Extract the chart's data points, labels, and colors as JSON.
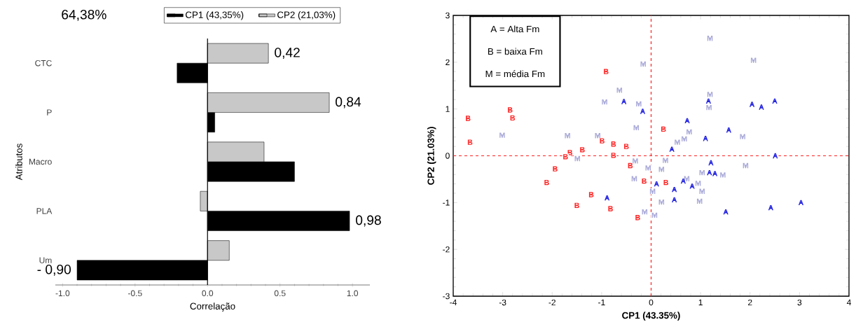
{
  "chart_data": [
    {
      "type": "bar",
      "orientation": "horizontal",
      "categories": [
        "CTC",
        "P",
        "Macro",
        "PLA",
        "Um"
      ],
      "xlabel": "Correlação",
      "ylabel": "Atributos",
      "xlim": [
        -1.05,
        1.12
      ],
      "xticks": [
        {
          "value": -1,
          "label": "-1.0"
        },
        {
          "value": -0.5,
          "label": "-0.5"
        },
        {
          "value": 0,
          "label": "0.0"
        },
        {
          "value": 0.5,
          "label": "0.5"
        },
        {
          "value": 1,
          "label": "1.0"
        }
      ],
      "legend": "top",
      "annotations": [
        "64,38%"
      ],
      "ref_lines": [
        {
          "axis": "x",
          "value": 0,
          "color": "#000000",
          "line_style": "solid"
        }
      ],
      "series": [
        {
          "name": "CP1 (43,35%)",
          "color": "#000000",
          "values": [
            -0.21,
            0.05,
            0.6,
            0.98,
            -0.9
          ],
          "value_labels": [
            null,
            null,
            null,
            "0,98",
            "- 0,90"
          ]
        },
        {
          "name": "CP2 (21,03%)",
          "color": "#c8c8c8",
          "values": [
            0.42,
            0.84,
            0.39,
            -0.05,
            0.15
          ],
          "value_labels": [
            "0,42",
            "0,84",
            null,
            null,
            null
          ]
        }
      ]
    },
    {
      "type": "scatter",
      "xlabel": "CP1 (43.35%)",
      "ylabel": "CP2 (21.03%)",
      "xlim": [
        -4,
        4
      ],
      "ylim": [
        -3,
        3
      ],
      "xticks": [
        -4,
        -3,
        -2,
        -1,
        0,
        1,
        2,
        3,
        4
      ],
      "yticks": [
        -3,
        -2,
        -1,
        0,
        1,
        2,
        3
      ],
      "annotations": [
        "A = Alta Fm",
        "B = baixa Fm",
        "M = média Fm"
      ],
      "ref_lines": [
        {
          "axis": "x",
          "value": 0,
          "color": "#ff2020",
          "line_style": "dashed"
        },
        {
          "axis": "y",
          "value": 0,
          "color": "#ff2020",
          "line_style": "dashed"
        }
      ],
      "series": [
        {
          "color": "#a8a8d8",
          "x": [
            1.19,
            2.07,
            -0.16,
            -0.64,
            -0.94,
            -0.25,
            -0.3,
            -3.01,
            -1.69,
            -1.08,
            1.19,
            1.17,
            0.77,
            0.53,
            0.67,
            1.85,
            0.29,
            1.91,
            1.45,
            1.03,
            0.72,
            0.95,
            1.03,
            0.98,
            0.21,
            0.03,
            0.07,
            -0.13,
            -0.34,
            -0.32,
            0.21,
            -0.06,
            -1.49
          ],
          "values": [
            2.51,
            2.04,
            1.96,
            1.4,
            1.15,
            1.11,
            0.6,
            0.44,
            0.43,
            0.43,
            1.31,
            1.03,
            0.51,
            0.29,
            0.36,
            0.41,
            -0.1,
            -0.21,
            -0.41,
            -0.36,
            -0.49,
            -0.59,
            -0.76,
            -0.97,
            -0.99,
            -0.76,
            -1.27,
            -1.2,
            -0.49,
            -0.11,
            -0.29,
            -0.26,
            -0.06
          ],
          "value_labels": [
            "M",
            "M",
            "M",
            "M",
            "M",
            "M",
            "M",
            "M",
            "M",
            "M",
            "M",
            "M",
            "M",
            "M",
            "M",
            "M",
            "M",
            "M",
            "M",
            "M",
            "M",
            "M",
            "M",
            "M",
            "M",
            "M",
            "M",
            "M",
            "M",
            "M",
            "M",
            "M",
            "M"
          ]
        },
        {
          "color": "#ff2020",
          "x": [
            -0.91,
            -3.7,
            -2.85,
            -2.8,
            -3.66,
            0.25,
            -0.99,
            -0.76,
            -0.5,
            -1.39,
            -1.64,
            -1.73,
            -0.76,
            -0.42,
            -1.94,
            -2.11,
            -1.21,
            -0.82,
            -1.5,
            -0.27,
            -0.14,
            0.3
          ],
          "values": [
            1.8,
            0.8,
            0.98,
            0.81,
            0.29,
            0.57,
            0.32,
            0.25,
            0.2,
            0.13,
            0.07,
            -0.02,
            0.01,
            -0.21,
            -0.28,
            -0.57,
            -0.83,
            -1.13,
            -1.06,
            -1.32,
            -0.54,
            -0.57
          ],
          "value_labels": [
            "B",
            "B",
            "B",
            "B",
            "B",
            "B",
            "B",
            "B",
            "B",
            "B",
            "B",
            "B",
            "B",
            "B",
            "B",
            "B",
            "B",
            "B",
            "B",
            "B",
            "B",
            "B"
          ]
        },
        {
          "color": "#2020e0",
          "x": [
            -0.55,
            -0.17,
            1.16,
            2.04,
            2.23,
            2.5,
            0.73,
            1.57,
            1.1,
            0.42,
            2.51,
            1.21,
            1.18,
            1.29,
            0.11,
            0.65,
            0.83,
            0.47,
            0.47,
            1.51,
            2.42,
            3.03,
            -0.89
          ],
          "values": [
            1.16,
            0.95,
            1.17,
            1.1,
            1.04,
            1.17,
            0.75,
            0.55,
            0.37,
            0.14,
            0.0,
            -0.15,
            -0.36,
            -0.38,
            -0.6,
            -0.54,
            -0.65,
            -0.72,
            -0.94,
            -1.2,
            -1.11,
            -1.0,
            -0.9
          ],
          "value_labels": [
            "A",
            "A",
            "A",
            "A",
            "A",
            "A",
            "A",
            "A",
            "A",
            "A",
            "A",
            "A",
            "A",
            "A",
            "A",
            "A",
            "A",
            "A",
            "A",
            "A",
            "A",
            "A",
            "A"
          ]
        }
      ]
    }
  ]
}
